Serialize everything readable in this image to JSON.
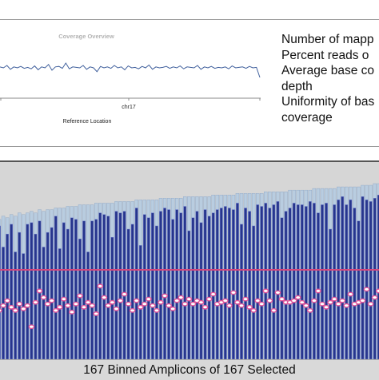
{
  "overview": {
    "title": "Coverage Overview",
    "x_tick": "chr17",
    "x_label": "Reference Location"
  },
  "summary": {
    "lines": [
      "Number of mapp",
      "Percent reads o",
      "Average base co",
      "depth",
      "Uniformity of bas",
      "coverage"
    ]
  },
  "footer": {
    "text": "167 Binned Amplicons of 167 Selected"
  },
  "colors": {
    "bar_fill": "#27358c",
    "bar_stroke": "#6f7fd0",
    "total_fill": "#b9cde0",
    "threshold_line": "#d4487e",
    "marker": "#e0559a",
    "overview_line": "#3f5f9c"
  },
  "chart_data": [
    {
      "type": "line",
      "title": "Coverage Overview",
      "xlabel": "Reference Location",
      "x_ticks": [
        "chr17"
      ],
      "grid": false,
      "y_values": [
        0.52,
        0.5,
        0.55,
        0.47,
        0.52,
        0.5,
        0.53,
        0.49,
        0.51,
        0.48,
        0.54,
        0.46,
        0.52,
        0.5,
        0.57,
        0.45,
        0.52,
        0.53,
        0.49,
        0.6,
        0.48,
        0.52,
        0.51,
        0.5,
        0.55,
        0.47,
        0.52,
        0.5,
        0.42,
        0.53,
        0.5,
        0.52,
        0.49,
        0.55,
        0.5,
        0.52,
        0.46,
        0.54,
        0.5,
        0.51,
        0.48,
        0.53,
        0.5,
        0.56,
        0.47,
        0.52,
        0.5,
        0.51,
        0.53,
        0.49,
        0.52,
        0.5,
        0.54,
        0.48,
        0.52,
        0.51,
        0.5,
        0.55,
        0.47,
        0.52,
        0.5,
        0.53,
        0.49,
        0.51,
        0.5,
        0.52,
        0.48,
        0.54,
        0.5,
        0.51,
        0.52,
        0.49,
        0.53,
        0.5,
        0.51,
        0.3
      ]
    },
    {
      "type": "bar",
      "series": [
        {
          "name": "",
          "kind": "bar",
          "values": [
            0.82,
            0.69,
            0.77,
            0.83,
            0.66,
            0.78,
            0.65,
            0.83,
            0.84,
            0.77,
            0.85,
            0.69,
            0.78,
            0.81,
            0.88,
            0.68,
            0.84,
            0.8,
            0.87,
            0.86,
            0.74,
            0.85,
            0.66,
            0.85,
            0.86,
            0.9,
            0.89,
            0.88,
            0.75,
            0.91,
            0.9,
            0.91,
            0.8,
            0.83,
            0.93,
            0.7,
            0.89,
            0.87,
            0.9,
            0.82,
            0.91,
            0.93,
            0.92,
            0.86,
            0.92,
            0.9,
            0.94,
            0.79,
            0.87,
            0.91,
            0.84,
            0.92,
            0.88,
            0.9,
            0.92,
            0.93,
            0.94,
            0.93,
            0.92,
            0.96,
            0.83,
            0.93,
            0.91,
            0.82,
            0.95,
            0.94,
            0.96,
            0.93,
            0.95,
            0.97,
            0.87,
            0.91,
            0.93,
            0.96,
            0.95,
            0.95,
            0.94,
            0.97,
            0.96,
            0.9,
            0.95,
            0.96,
            0.8,
            0.95,
            0.98,
            1.0,
            0.95,
            0.98,
            0.93,
            0.85,
            1.0,
            0.98,
            0.97,
            0.99,
            1.01
          ]
        },
        {
          "name": "",
          "kind": "bar",
          "values": [
            0.86,
            0.88,
            0.87,
            0.89,
            0.88,
            0.9,
            0.89,
            0.9,
            0.91,
            0.9,
            0.92,
            0.91,
            0.92,
            0.92,
            0.93,
            0.93,
            0.93,
            0.94,
            0.94,
            0.94,
            0.95,
            0.95,
            0.95,
            0.95,
            0.96,
            0.96,
            0.96,
            0.96,
            0.96,
            0.97,
            0.97,
            0.97,
            0.97,
            0.97,
            0.98,
            0.98,
            0.98,
            0.98,
            0.98,
            0.98,
            0.99,
            0.99,
            0.99,
            0.99,
            0.99,
            0.99,
            1.0,
            1.0,
            1.0,
            1.0,
            1.0,
            1.0,
            1.0,
            1.01,
            1.01,
            1.01,
            1.01,
            1.01,
            1.01,
            1.02,
            1.02,
            1.02,
            1.02,
            1.02,
            1.02,
            1.02,
            1.03,
            1.03,
            1.03,
            1.03,
            1.03,
            1.03,
            1.04,
            1.04,
            1.04,
            1.04,
            1.04,
            1.04,
            1.05,
            1.05,
            1.05,
            1.05,
            1.05,
            1.05,
            1.06,
            1.06,
            1.06,
            1.06,
            1.06,
            1.06,
            1.07,
            1.07,
            1.07,
            1.08,
            1.08
          ]
        },
        {
          "name": "",
          "kind": "markers",
          "values": [
            0.3,
            0.33,
            0.36,
            0.32,
            0.3,
            0.34,
            0.31,
            0.33,
            0.2,
            0.35,
            0.42,
            0.38,
            0.34,
            0.36,
            0.3,
            0.32,
            0.37,
            0.33,
            0.29,
            0.34,
            0.39,
            0.32,
            0.35,
            0.33,
            0.28,
            0.45,
            0.38,
            0.33,
            0.35,
            0.31,
            0.36,
            0.4,
            0.34,
            0.3,
            0.36,
            0.32,
            0.34,
            0.37,
            0.33,
            0.3,
            0.35,
            0.39,
            0.33,
            0.31,
            0.36,
            0.38,
            0.34,
            0.37,
            0.34,
            0.36,
            0.35,
            0.32,
            0.37,
            0.4,
            0.34,
            0.35,
            0.36,
            0.33,
            0.41,
            0.35,
            0.33,
            0.37,
            0.32,
            0.3,
            0.36,
            0.34,
            0.42,
            0.36,
            0.3,
            0.41,
            0.37,
            0.35,
            0.35,
            0.36,
            0.38,
            0.35,
            0.33,
            0.3,
            0.36,
            0.42,
            0.34,
            0.32,
            0.35,
            0.37,
            0.34,
            0.36,
            0.33,
            0.4,
            0.34,
            0.35,
            0.36,
            0.43,
            0.34,
            0.38,
            0.42
          ]
        }
      ],
      "threshold": 0.55,
      "ylim": [
        0,
        1.08
      ]
    }
  ]
}
